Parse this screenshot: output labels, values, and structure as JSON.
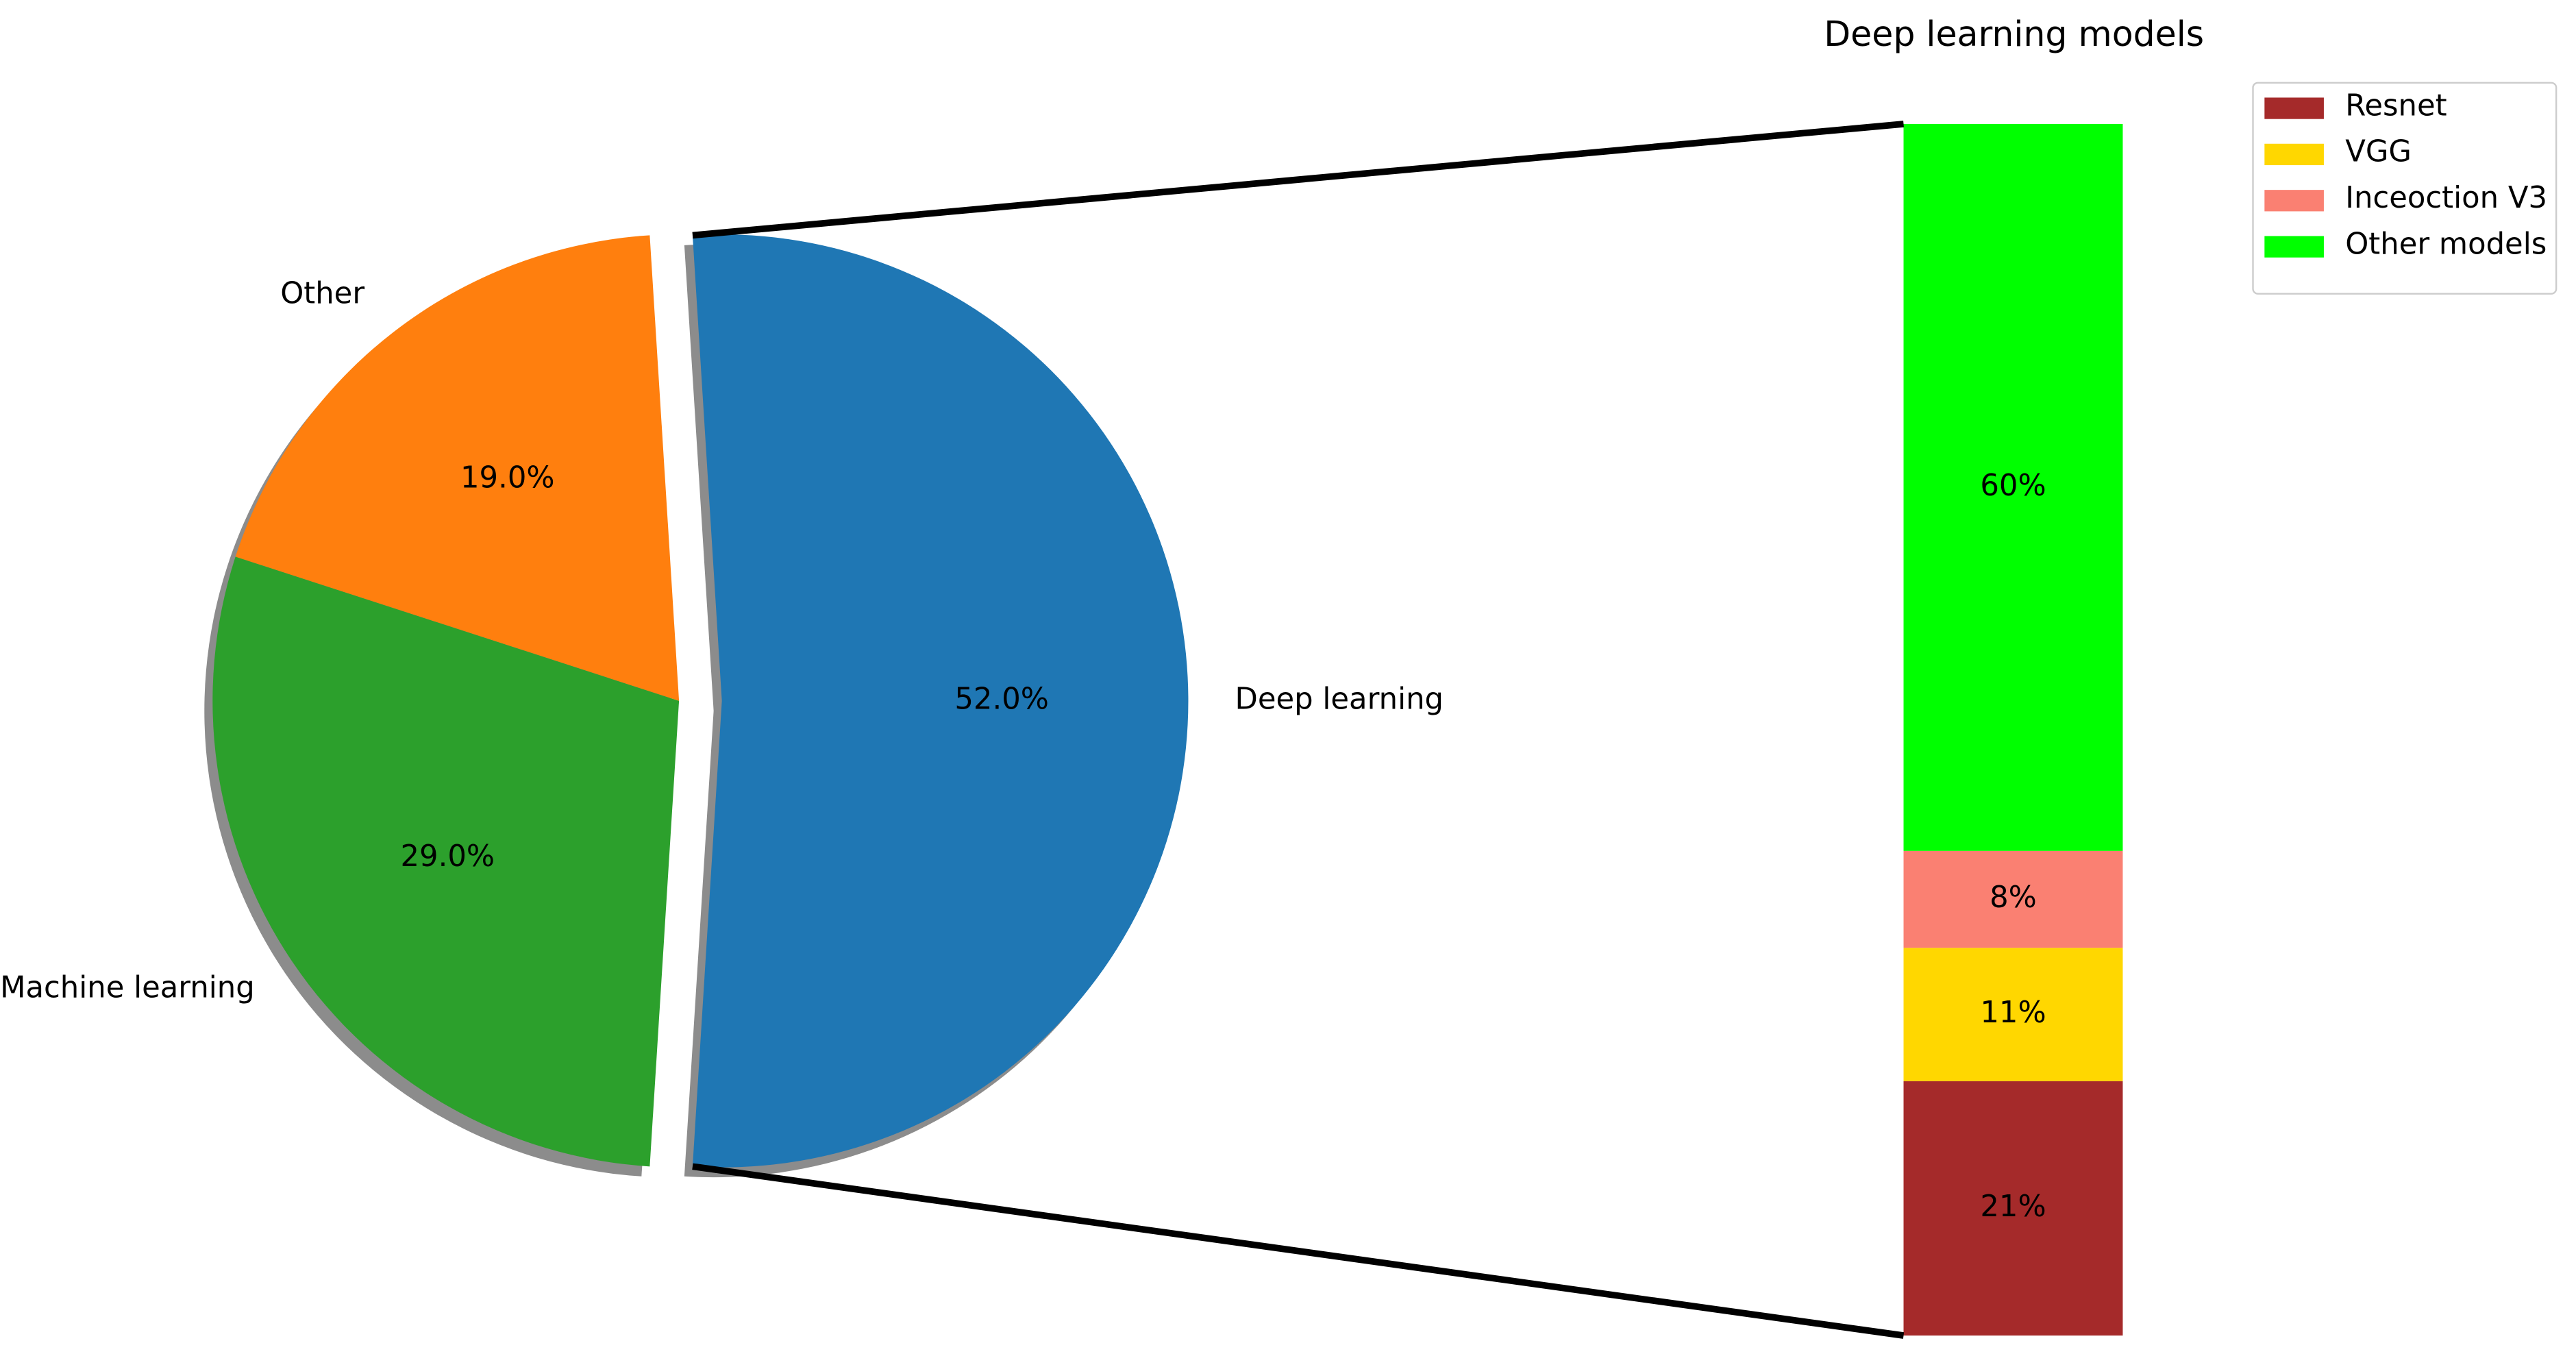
{
  "chart_data": [
    {
      "type": "pie",
      "categories": [
        "Deep learning",
        "Other",
        "Machine learning"
      ],
      "values": [
        52.0,
        19.0,
        29.0
      ],
      "value_labels": [
        "52.0%",
        "19.0%",
        "29.0%"
      ],
      "colors": [
        "#1f77b4",
        "#ff7f0e",
        "#2ca02c"
      ],
      "shadow": true
    },
    {
      "type": "bar",
      "title": "Deep learning models",
      "stacked": true,
      "legend": "upper right",
      "series": [
        {
          "name": "Resnet",
          "color": "#a52a2a",
          "values": [
            21
          ],
          "value_labels": [
            "21%"
          ]
        },
        {
          "name": "VGG",
          "color": "#ffd700",
          "values": [
            11
          ],
          "value_labels": [
            "11%"
          ]
        },
        {
          "name": "Inceoction V3",
          "color": "#fa8072",
          "values": [
            8
          ],
          "value_labels": [
            "8%"
          ]
        },
        {
          "name": "Other models",
          "color": "#00ff00",
          "values": [
            60
          ],
          "value_labels": [
            "60%"
          ]
        }
      ]
    }
  ]
}
